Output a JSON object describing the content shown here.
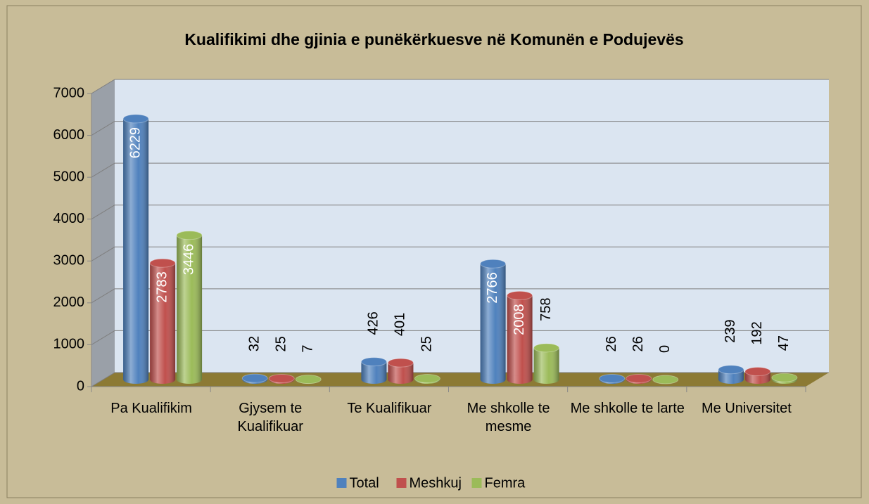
{
  "chart_data": {
    "type": "bar",
    "title": "Kualifikimi  dhe gjinia e punëkërkuesve në Komunën e Podujevës",
    "categories": [
      "Pa Kualifikim",
      "Gjysem te Kualifikuar",
      "Te Kualifikuar",
      "Me shkolle te mesme",
      "Me shkolle te larte",
      "Me Universitet"
    ],
    "series": [
      {
        "name": "Total",
        "color": "#4f81bd",
        "values": [
          6229,
          32,
          426,
          2766,
          26,
          239
        ]
      },
      {
        "name": "Meshkuj",
        "color": "#c0504d",
        "values": [
          2783,
          25,
          401,
          2008,
          26,
          192
        ]
      },
      {
        "name": "Femra",
        "color": "#9bbb59",
        "values": [
          3446,
          7,
          25,
          758,
          0,
          47
        ]
      }
    ],
    "ylim": [
      0,
      7000
    ],
    "yticks": [
      0,
      1000,
      2000,
      3000,
      4000,
      5000,
      6000,
      7000
    ],
    "grid": true,
    "legend": "bottom"
  }
}
